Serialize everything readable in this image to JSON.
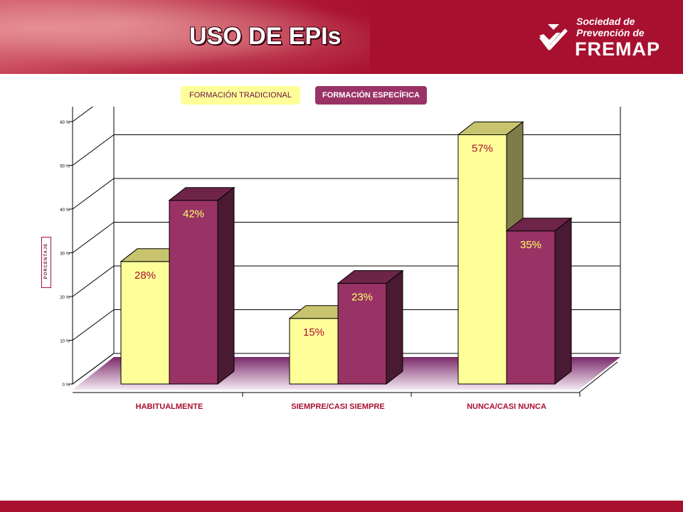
{
  "header": {
    "title": "USO DE EPIs",
    "logo_line1": "Sociedad de",
    "logo_line2": "Prevención de",
    "logo_brand": "FREMAP"
  },
  "legend": {
    "traditional": "FORMACIÓN TRADICIONAL",
    "specific": "FORMACIÓN ESPECÍFICA"
  },
  "colors": {
    "brand": "#a8102f",
    "traditional_front": "#ffff99",
    "traditional_top": "#c8c46e",
    "traditional_side": "#807c4a",
    "specific_front": "#993366",
    "specific_top": "#6e2448",
    "specific_side": "#4a1a32",
    "floor": "#7a2a6a",
    "category_text": "#a8102f",
    "trad_value_text": "#a8102f",
    "spec_value_text": "#ffff66"
  },
  "chart_data": {
    "type": "bar",
    "categories": [
      "HABITUALMENTE",
      "SIEMPRE/CASI SIEMPRE",
      "NUNCA/CASI NUNCA"
    ],
    "series": [
      {
        "name": "FORMACIÓN TRADICIONAL",
        "values": [
          28,
          15,
          57
        ]
      },
      {
        "name": "FORMACIÓN ESPECÍFICA",
        "values": [
          42,
          23,
          35
        ]
      }
    ],
    "value_labels": [
      [
        "28%",
        "15%",
        "57%"
      ],
      [
        "42%",
        "23%",
        "35%"
      ]
    ],
    "ylabel": "PORCENTAJE",
    "yticks": [
      0,
      10,
      20,
      30,
      40,
      50,
      60
    ],
    "ytick_labels": [
      "0 %",
      "10 %",
      "20 %",
      "30 %",
      "40 %",
      "50 %",
      "60 %"
    ],
    "ylim": [
      0,
      60
    ],
    "grid": true,
    "three_d": true,
    "legend_position": "top"
  }
}
